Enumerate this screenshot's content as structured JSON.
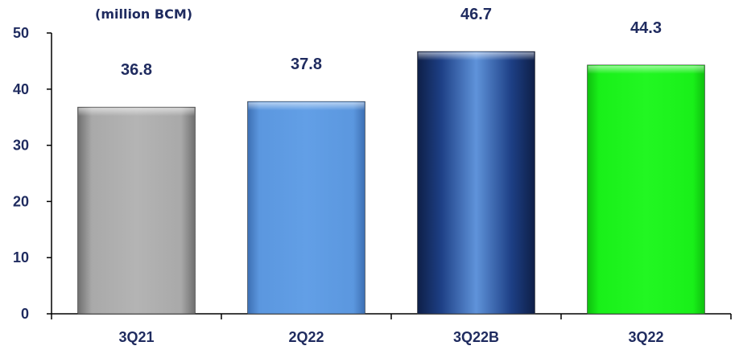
{
  "chart_data": {
    "type": "bar",
    "unit_label": "(million BCM)",
    "categories": [
      "3Q21",
      "2Q22",
      "3Q22B",
      "3Q22"
    ],
    "values": [
      36.8,
      37.8,
      46.7,
      44.3
    ],
    "value_labels": [
      "36.8",
      "37.8",
      "46.7",
      "44.3"
    ],
    "ylim": [
      0,
      50
    ],
    "yticks": [
      "0",
      "10",
      "20",
      "30",
      "40",
      "50"
    ],
    "bar_styles": [
      "gray",
      "light-blue",
      "navy-gradient",
      "bright-green"
    ],
    "colors": {
      "text": "#1f2b5f",
      "axis": "#000000",
      "gray": "#a6a6a6",
      "light-blue": "#5b97df",
      "navy-gradient": "#1a3a78",
      "bright-green": "#19f019"
    },
    "grid": false,
    "legend": "none"
  }
}
